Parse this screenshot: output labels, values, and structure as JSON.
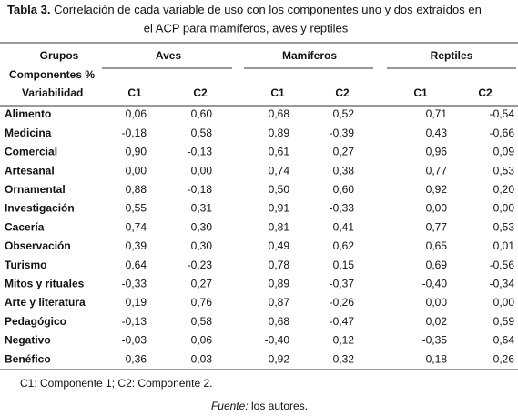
{
  "title": {
    "label": "Tabla 3.",
    "line1": "Correlación de cada variable de uso con los componentes uno y dos extraídos en",
    "line2": "el ACP para mamíferos, aves y reptiles"
  },
  "header": {
    "col0": [
      "Grupos",
      "Componentes  %",
      "Variabilidad"
    ],
    "groups": [
      "Aves",
      "Mamíferos",
      "Reptiles"
    ],
    "components": [
      "C1",
      "C2",
      "C1",
      "C2",
      "C1",
      "C2"
    ]
  },
  "table": {
    "rows": [
      [
        "Alimento",
        "0,06",
        "0,60",
        "0,68",
        "0,52",
        "0,71",
        "-0,54"
      ],
      [
        "Medicina",
        "-0,18",
        "0,58",
        "0,89",
        "-0,39",
        "0,43",
        "-0,66"
      ],
      [
        "Comercial",
        "0,90",
        "-0,13",
        "0,61",
        "0,27",
        "0,96",
        "0,09"
      ],
      [
        "Artesanal",
        "0,00",
        "0,00",
        "0,74",
        "0,38",
        "0,77",
        "0,53"
      ],
      [
        "Ornamental",
        "0,88",
        "-0,18",
        "0,50",
        "0,60",
        "0,92",
        "0,20"
      ],
      [
        "Investigación",
        "0,55",
        "0,31",
        "0,91",
        "-0,33",
        "0,00",
        "0,00"
      ],
      [
        "Cacería",
        "0,74",
        "0,30",
        "0,81",
        "0,41",
        "0,77",
        "0,53"
      ],
      [
        "Observación",
        "0,39",
        "0,30",
        "0,49",
        "0,62",
        "0,65",
        "0,01"
      ],
      [
        "Turismo",
        "0,64",
        "-0,23",
        "0,78",
        "0,15",
        "0,69",
        "-0,56"
      ],
      [
        "Mitos y rituales",
        "-0,33",
        "0,27",
        "0,89",
        "-0,37",
        "-0,40",
        "-0,34"
      ],
      [
        "Arte y literatura",
        "0,19",
        "0,76",
        "0,87",
        "-0,26",
        "0,00",
        "0,00"
      ],
      [
        "Pedagógico",
        "-0,13",
        "0,58",
        "0,68",
        "-0,47",
        "0,02",
        "0,59"
      ],
      [
        "Negativo",
        "-0,03",
        "0,06",
        "-0,40",
        "0,12",
        "-0,35",
        "0,64"
      ],
      [
        "Benéfico",
        "-0,36",
        "-0,03",
        "0,92",
        "-0,32",
        "-0,18",
        "0,26"
      ]
    ]
  },
  "note": "C1: Componente 1; C2: Componente 2.",
  "source": {
    "label": "Fuente:",
    "text": "los autores."
  }
}
